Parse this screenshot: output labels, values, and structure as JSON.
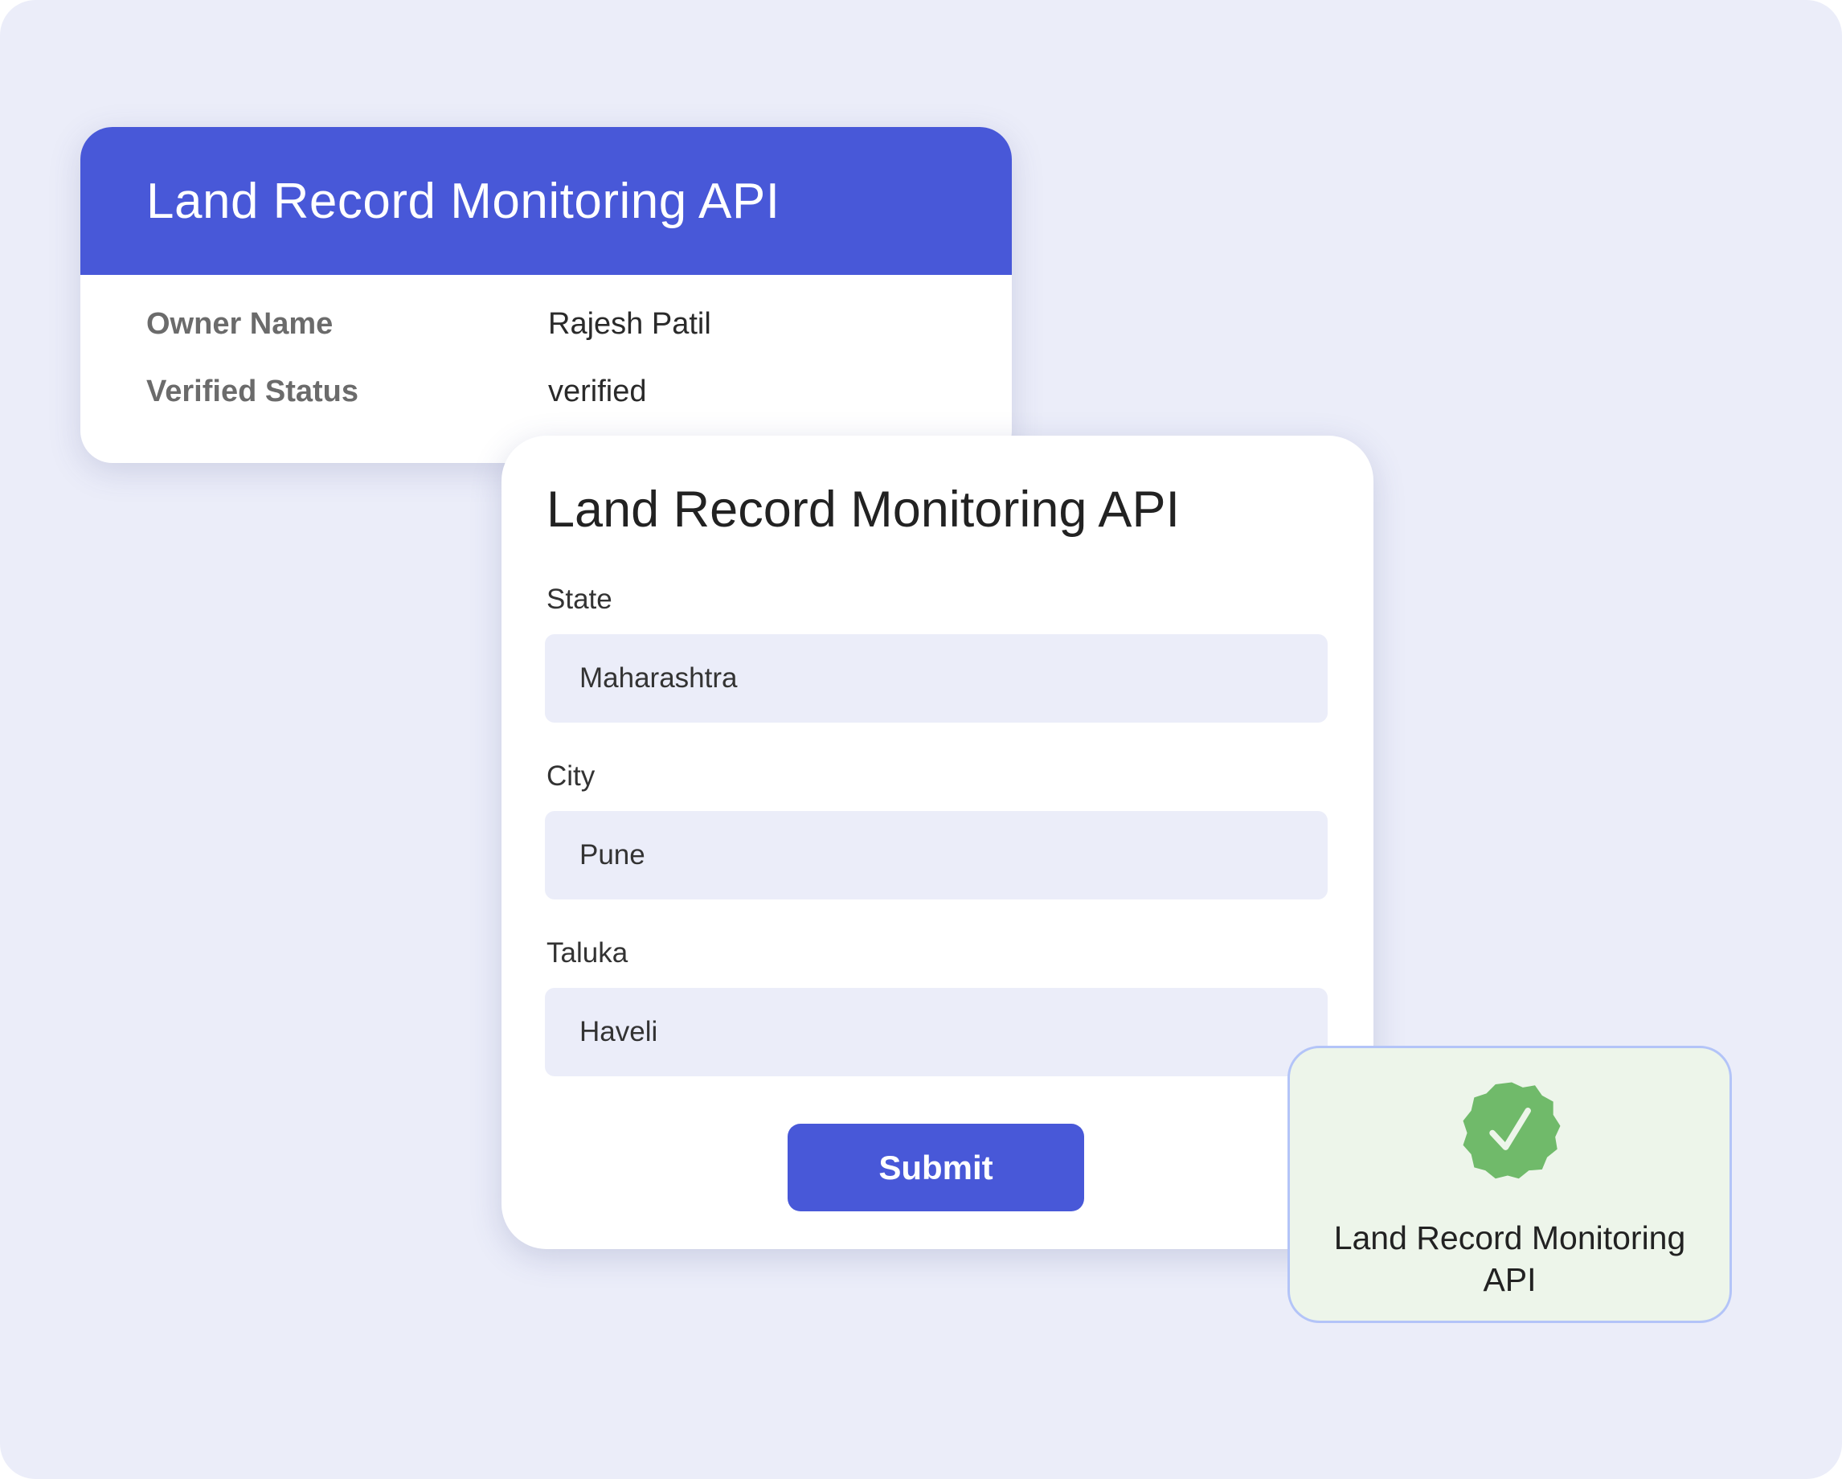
{
  "record_card": {
    "title": "Land Record Monitoring API",
    "rows": [
      {
        "label": "Owner Name",
        "value": "Rajesh Patil"
      },
      {
        "label": "Verified Status",
        "value": "verified"
      }
    ]
  },
  "form_card": {
    "title": "Land Record Monitoring API",
    "fields": [
      {
        "label": "State",
        "value": "Maharashtra"
      },
      {
        "label": "City",
        "value": "Pune"
      },
      {
        "label": "Taluka",
        "value": "Haveli"
      }
    ],
    "submit_label": "Submit"
  },
  "verified_card": {
    "icon": "verified-badge-icon",
    "text": "Land Record Monitoring API"
  },
  "colors": {
    "accent": "#4858D8",
    "background": "#EBEDF9",
    "success": "#70BA6A"
  }
}
